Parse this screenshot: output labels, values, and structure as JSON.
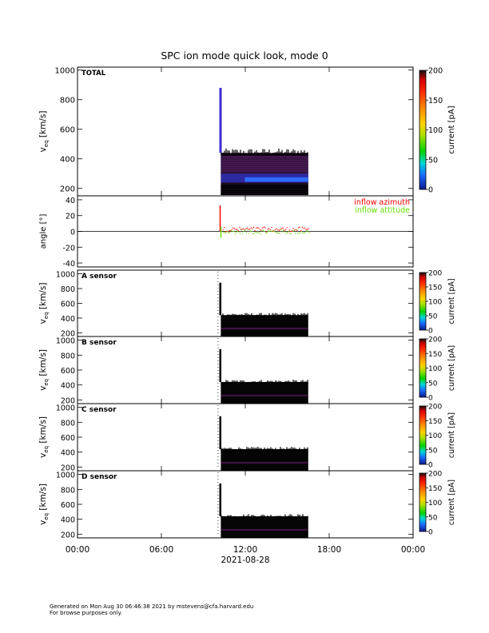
{
  "title": "SPC ion mode quick look, mode 0",
  "footer": {
    "line1": "Generated on Mon Aug 30 06:46:38 2021 by mstevens@cfa.harvard.edu",
    "line2": "For browse purposes only."
  },
  "chart_data": [
    {
      "type": "heatmap",
      "panel": "TOTAL",
      "label": "TOTAL",
      "ylabel_main": "v",
      "ylabel_sub": "eq",
      "ylabel_unit": "[km/s]",
      "ylim": [
        150,
        1020
      ],
      "yticks": [
        200,
        400,
        600,
        800,
        1000
      ],
      "colorbar": {
        "label": "current [pA]",
        "range": [
          0,
          200
        ],
        "ticks": [
          0,
          50,
          100,
          150,
          200
        ]
      },
      "data_window_hours": [
        10.2,
        16.5
      ],
      "spike": {
        "time_hours": 10.2,
        "v_max": 880
      },
      "bulk_speed_km_s": 255,
      "max_extent_km_s": 440
    },
    {
      "type": "line",
      "panel": "angle",
      "ylabel": "angle [°]",
      "ylim": [
        -45,
        45
      ],
      "yticks": [
        -40,
        -20,
        0,
        20,
        40
      ],
      "series": [
        {
          "name": "inflow azimuth",
          "color": "#ff0000",
          "spike_deg": 33,
          "typical_deg": 2
        },
        {
          "name": "inflow attitude",
          "color": "#66dd00",
          "spike_deg": -8,
          "typical_deg": 0
        }
      ]
    },
    {
      "type": "heatmap",
      "panel": "A",
      "label": "A sensor",
      "ylabel_main": "v",
      "ylabel_sub": "eq",
      "ylabel_unit": "[km/s]",
      "ylim": [
        150,
        1050
      ],
      "yticks": [
        200,
        400,
        600,
        800,
        1000
      ],
      "colorbar": {
        "label": "current [pA]",
        "range": [
          0,
          200
        ],
        "ticks": [
          0,
          50,
          100,
          150,
          200
        ]
      },
      "spike": {
        "time_hours": 10.2,
        "v_max": 880
      },
      "max_extent_km_s": 440
    },
    {
      "type": "heatmap",
      "panel": "B",
      "label": "B sensor",
      "ylabel_main": "v",
      "ylabel_sub": "eq",
      "ylabel_unit": "[km/s]",
      "ylim": [
        150,
        1050
      ],
      "yticks": [
        200,
        400,
        600,
        800,
        1000
      ],
      "colorbar": {
        "label": "current [pA]",
        "range": [
          0,
          200
        ],
        "ticks": [
          0,
          50,
          100,
          150,
          200
        ]
      },
      "spike": {
        "time_hours": 10.2,
        "v_max": 880
      },
      "max_extent_km_s": 440
    },
    {
      "type": "heatmap",
      "panel": "C",
      "label": "C sensor",
      "ylabel_main": "v",
      "ylabel_sub": "eq",
      "ylabel_unit": "[km/s]",
      "ylim": [
        150,
        1050
      ],
      "yticks": [
        200,
        400,
        600,
        800,
        1000
      ],
      "colorbar": {
        "label": "current [pA]",
        "range": [
          0,
          200
        ],
        "ticks": [
          0,
          50,
          100,
          150,
          200
        ]
      },
      "spike": {
        "time_hours": 10.2,
        "v_max": 880
      },
      "max_extent_km_s": 440
    },
    {
      "type": "heatmap",
      "panel": "D",
      "label": "D sensor",
      "ylabel_main": "v",
      "ylabel_sub": "eq",
      "ylabel_unit": "[km/s]",
      "ylim": [
        150,
        1050
      ],
      "yticks": [
        200,
        400,
        600,
        800,
        1000
      ],
      "colorbar": {
        "label": "current [pA]",
        "range": [
          0,
          200
        ],
        "ticks": [
          0,
          50,
          100,
          150,
          200
        ]
      },
      "spike": {
        "time_hours": 10.2,
        "v_max": 880
      },
      "max_extent_km_s": 440
    }
  ],
  "xaxis": {
    "range_hours": [
      0,
      24
    ],
    "tick_hours": [
      0,
      6,
      12,
      18,
      24
    ],
    "tick_labels": [
      "00:00",
      "06:00",
      "12:00",
      "18:00",
      "00:00"
    ],
    "date_label": "2021-08-28"
  }
}
